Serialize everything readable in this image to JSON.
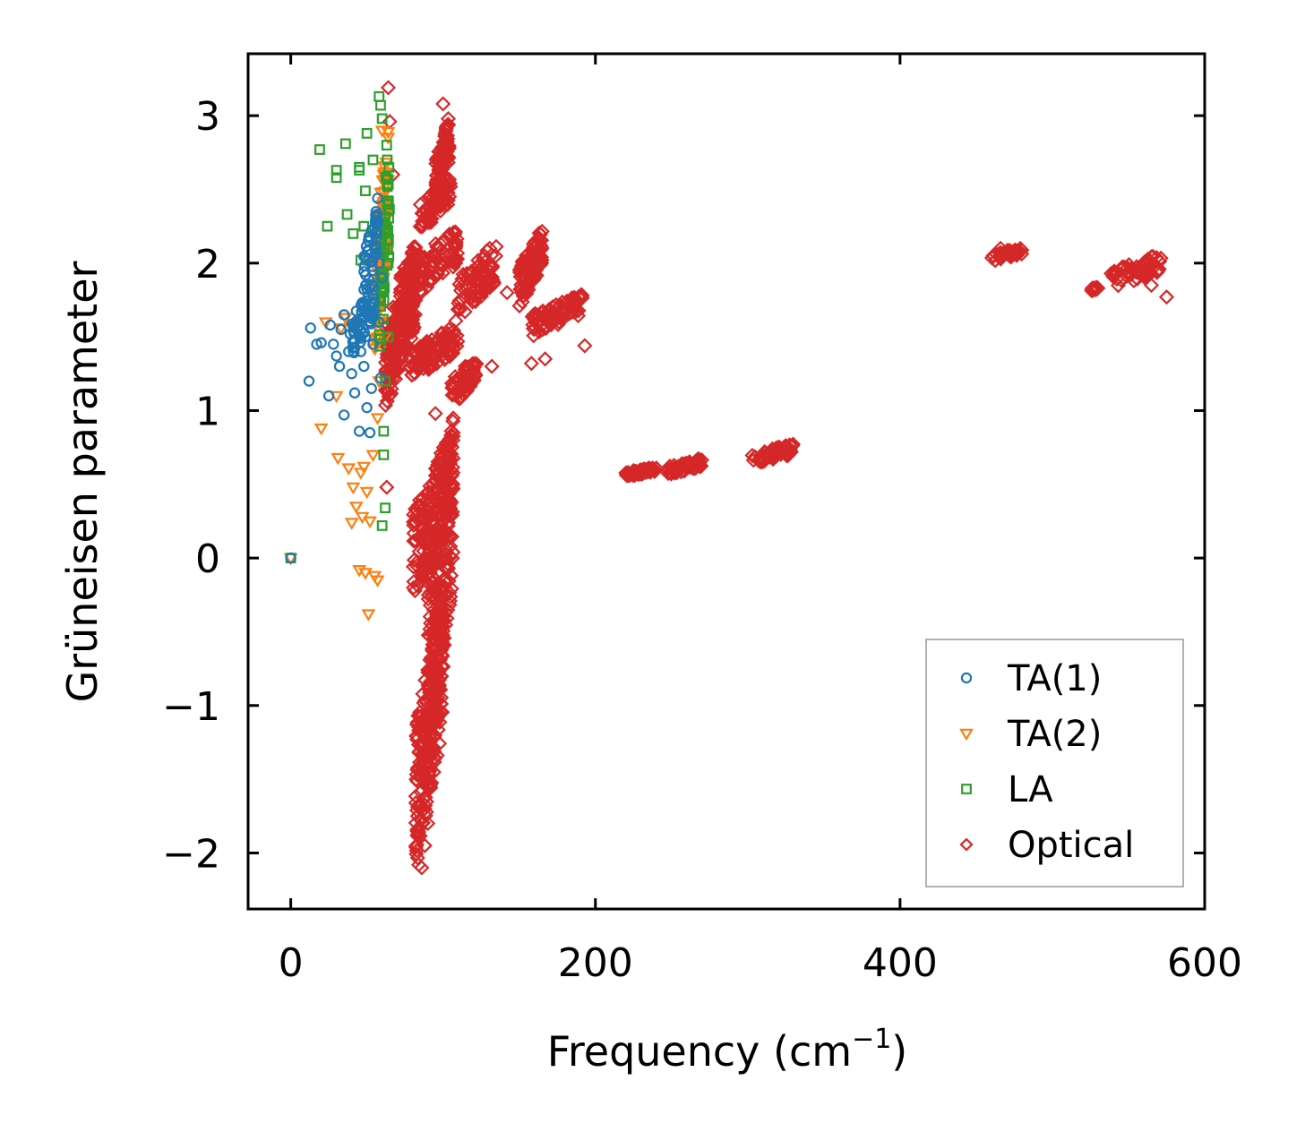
{
  "chart_data": {
    "type": "scatter",
    "title": "",
    "xlabel": "Frequency (cm",
    "xlabel_sup": "−1",
    "xlabel_close": ")",
    "ylabel": "Grüneisen parameter",
    "xlim": [
      -28,
      600
    ],
    "ylim": [
      -2.38,
      3.42
    ],
    "xticks": [
      0,
      200,
      400,
      600
    ],
    "xtick_labels": [
      "0",
      "200",
      "400",
      "600"
    ],
    "yticks": [
      -2,
      -1,
      0,
      1,
      2,
      3
    ],
    "ytick_labels": [
      "−2",
      "−1",
      "0",
      "1",
      "2",
      "3"
    ],
    "grid": false,
    "legend_position": "bottom-right",
    "series": [
      {
        "name": "TA(1)",
        "marker": "circle",
        "color": "#1f77b4",
        "points": [
          [
            0,
            0
          ],
          [
            12,
            1.2
          ],
          [
            13,
            1.56
          ],
          [
            17,
            1.45
          ],
          [
            20,
            1.46
          ],
          [
            25,
            1.1
          ],
          [
            26,
            1.58
          ],
          [
            28,
            1.45
          ],
          [
            30,
            1.37
          ],
          [
            32,
            1.3
          ],
          [
            33,
            1.55
          ],
          [
            35,
            1.65
          ],
          [
            35,
            0.97
          ],
          [
            38,
            1.4
          ],
          [
            39,
            1.52
          ],
          [
            40,
            1.25
          ],
          [
            42,
            1.12
          ],
          [
            42,
            1.47
          ],
          [
            44,
            1.6
          ],
          [
            45,
            0.86
          ],
          [
            46,
            1.4
          ],
          [
            47,
            1.7
          ],
          [
            48,
            1.3
          ],
          [
            49,
            1.5
          ],
          [
            50,
            1.02
          ],
          [
            51,
            1.78
          ],
          [
            52,
            0.85
          ],
          [
            52,
            1.6
          ],
          [
            53,
            1.85
          ],
          [
            54,
            1.95
          ],
          [
            54,
            1.45
          ],
          [
            55,
            2.05
          ],
          [
            55,
            2.1
          ],
          [
            56,
            2.2
          ],
          [
            56,
            2.35
          ],
          [
            57,
            2.44
          ],
          [
            57,
            2.28
          ],
          [
            58,
            2.0
          ],
          [
            58,
            1.6
          ],
          [
            59,
            1.22
          ],
          [
            60,
            1.9
          ],
          [
            53,
            1.15
          ]
        ],
        "bands": [
          [
            40,
            1.35,
            55,
            1.9,
            60
          ],
          [
            48,
            1.75,
            57,
            2.4,
            40
          ]
        ]
      },
      {
        "name": "TA(2)",
        "marker": "triangle-down",
        "color": "#ff7f0e",
        "points": [
          [
            0,
            0
          ],
          [
            20,
            0.88
          ],
          [
            23,
            1.6
          ],
          [
            30,
            1.1
          ],
          [
            31,
            0.68
          ],
          [
            33,
            1.56
          ],
          [
            36,
            1.63
          ],
          [
            38,
            0.61
          ],
          [
            40,
            0.24
          ],
          [
            41,
            0.48
          ],
          [
            43,
            0.35
          ],
          [
            45,
            -0.08
          ],
          [
            46,
            0.58
          ],
          [
            47,
            0.28
          ],
          [
            48,
            0.62
          ],
          [
            49,
            -0.1
          ],
          [
            50,
            0.45
          ],
          [
            51,
            -0.38
          ],
          [
            52,
            0.25
          ],
          [
            54,
            0.7
          ],
          [
            55,
            -0.12
          ],
          [
            57,
            -0.15
          ],
          [
            57,
            0.95
          ],
          [
            58,
            1.2
          ],
          [
            59,
            1.6
          ],
          [
            59,
            2.3
          ],
          [
            60,
            2.9
          ],
          [
            61,
            2.6
          ],
          [
            62,
            2.1
          ],
          [
            62,
            1.5
          ]
        ],
        "bands": [
          [
            55,
            1.3,
            64,
            2.95,
            90
          ]
        ]
      },
      {
        "name": "LA",
        "marker": "square",
        "color": "#2ca02c",
        "points": [
          [
            0,
            0
          ],
          [
            19,
            2.77
          ],
          [
            24,
            2.25
          ],
          [
            30,
            2.58
          ],
          [
            30,
            2.63
          ],
          [
            36,
            2.81
          ],
          [
            37,
            2.33
          ],
          [
            41,
            2.2
          ],
          [
            45,
            2.63
          ],
          [
            45,
            2.65
          ],
          [
            46,
            2.02
          ],
          [
            48,
            2.25
          ],
          [
            49,
            2.49
          ],
          [
            50,
            2.88
          ],
          [
            54,
            2.7
          ],
          [
            58,
            3.13
          ],
          [
            59,
            3.07
          ],
          [
            60,
            2.98
          ],
          [
            61,
            0.86
          ],
          [
            61,
            0.7
          ],
          [
            62,
            0.34
          ],
          [
            60,
            0.22
          ],
          [
            62,
            1.2
          ],
          [
            63,
            2.8
          ],
          [
            64,
            2.4
          ],
          [
            64,
            2.0
          ],
          [
            64,
            1.5
          ]
        ],
        "bands": [
          [
            58,
            1.3,
            65,
            2.9,
            60
          ]
        ]
      },
      {
        "name": "Optical",
        "marker": "diamond",
        "color": "#d62728",
        "points": [
          [
            64,
            3.19
          ],
          [
            65,
            2.96
          ],
          [
            63,
            0.48
          ],
          [
            67,
            2.6
          ],
          [
            84,
            -2.08
          ],
          [
            86,
            -2.1
          ],
          [
            88,
            -1.95
          ],
          [
            90,
            -1.8
          ],
          [
            95,
            0.98
          ],
          [
            100,
            3.08
          ],
          [
            132,
            1.3
          ],
          [
            142,
            1.8
          ],
          [
            158,
            1.32
          ],
          [
            167,
            1.35
          ],
          [
            193,
            1.44
          ],
          [
            575,
            1.77
          ],
          [
            466,
            2.1
          ],
          [
            565,
            1.85
          ]
        ],
        "bands": [
          [
            62,
            1.0,
            82,
            2.15,
            220
          ],
          [
            72,
            1.7,
            110,
            2.25,
            120
          ],
          [
            78,
            1.2,
            110,
            1.6,
            100
          ],
          [
            80,
            -0.3,
            107,
            0.9,
            200
          ],
          [
            82,
            -2.1,
            100,
            -0.2,
            240
          ],
          [
            90,
            -1.4,
            107,
            1.0,
            220
          ],
          [
            95,
            2.4,
            104,
            3.0,
            100
          ],
          [
            85,
            2.2,
            105,
            2.6,
            60
          ],
          [
            105,
            1.0,
            122,
            1.4,
            50
          ],
          [
            108,
            1.6,
            135,
            2.15,
            80
          ],
          [
            150,
            1.7,
            165,
            2.25,
            110
          ],
          [
            158,
            1.5,
            192,
            1.8,
            90
          ],
          [
            220,
            0.55,
            240,
            0.62,
            60
          ],
          [
            247,
            0.56,
            270,
            0.68,
            60
          ],
          [
            303,
            0.63,
            330,
            0.78,
            60
          ],
          [
            460,
            2.01,
            480,
            2.11,
            40
          ],
          [
            525,
            1.8,
            530,
            1.85,
            15
          ],
          [
            538,
            1.82,
            572,
            2.07,
            60
          ]
        ]
      }
    ]
  }
}
